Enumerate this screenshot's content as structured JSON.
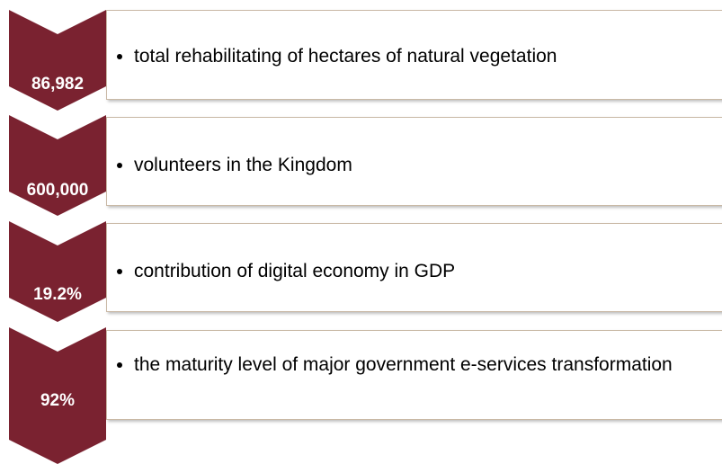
{
  "items": [
    {
      "value": "86,982",
      "text": "total rehabilitating of hectares of natural vegetation"
    },
    {
      "value": "600,000",
      "text": "volunteers in the Kingdom"
    },
    {
      "value": "19.2%",
      "text": "contribution of digital economy in GDP"
    },
    {
      "value": "92%",
      "text": "the maturity level of major government e-services transformation"
    }
  ]
}
